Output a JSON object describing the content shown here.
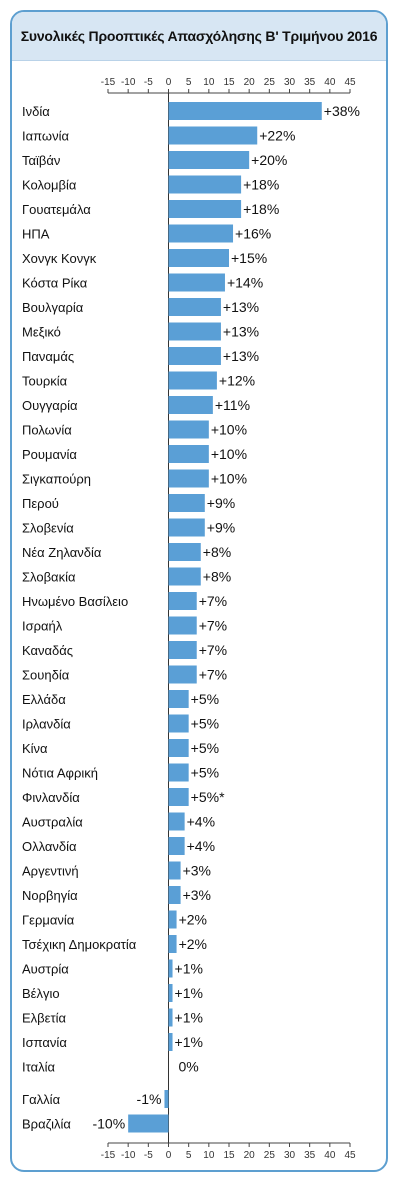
{
  "chart_data": {
    "type": "bar",
    "orientation": "horizontal",
    "title": "Συνολικές Προοπτικές Απασχόλησης Β' Τριμήνου 2016",
    "xlim": [
      -15,
      45
    ],
    "xticks": [
      "-15",
      "-10",
      "-5",
      "0",
      "5",
      "10",
      "15",
      "20",
      "25",
      "30",
      "35",
      "40",
      "45"
    ],
    "bar_color": "#5a9fd6",
    "categories": [
      "Ινδία",
      "Ιαπωνία",
      "Ταϊβάν",
      "Κολομβία",
      "Γουατεμάλα",
      "ΗΠΑ",
      "Χονγκ Κονγκ",
      "Κόστα Ρίκα",
      "Βουλγαρία",
      "Μεξικό",
      "Παναμάς",
      "Τουρκία",
      "Ουγγαρία",
      "Πολωνία",
      "Ρουμανία",
      "Σιγκαπούρη",
      "Περού",
      "Σλοβενία",
      "Νέα Ζηλανδία",
      "Σλοβακία",
      "Ηνωμένο Βασίλειο",
      "Ισραήλ",
      "Καναδάς",
      "Σουηδία",
      "Ελλάδα",
      "Ιρλανδία",
      "Κίνα",
      "Νότια Αφρική",
      "Φινλανδία",
      "Αυστραλία",
      "Ολλανδία",
      "Αργεντινή",
      "Νορβηγία",
      "Γερμανία",
      "Τσέχικη Δημοκρατία",
      "Αυστρία",
      "Βέλγιο",
      "Ελβετία",
      "Ισπανία",
      "Ιταλία",
      "Γαλλία",
      "Βραζιλία"
    ],
    "values": [
      38,
      22,
      20,
      18,
      18,
      16,
      15,
      14,
      13,
      13,
      13,
      12,
      11,
      10,
      10,
      10,
      9,
      9,
      8,
      8,
      7,
      7,
      7,
      7,
      5,
      5,
      5,
      5,
      5,
      4,
      4,
      3,
      3,
      2,
      2,
      1,
      1,
      1,
      1,
      0,
      -1,
      -10
    ],
    "value_labels": [
      "+38%",
      "+22%",
      "+20%",
      "+18%",
      "+18%",
      "+16%",
      "+15%",
      "+14%",
      "+13%",
      "+13%",
      "+13%",
      "+12%",
      "+11%",
      "+10%",
      "+10%",
      "+10%",
      "+9%",
      "+9%",
      "+8%",
      "+8%",
      "+7%",
      "+7%",
      "+7%",
      "+7%",
      "+5%",
      "+5%",
      "+5%",
      "+5%",
      "+5%*",
      "+4%",
      "+4%",
      "+3%",
      "+3%",
      "+2%",
      "+2%",
      "+1%",
      "+1%",
      "+1%",
      "+1%",
      "0%",
      "-1%",
      "-10%"
    ]
  }
}
